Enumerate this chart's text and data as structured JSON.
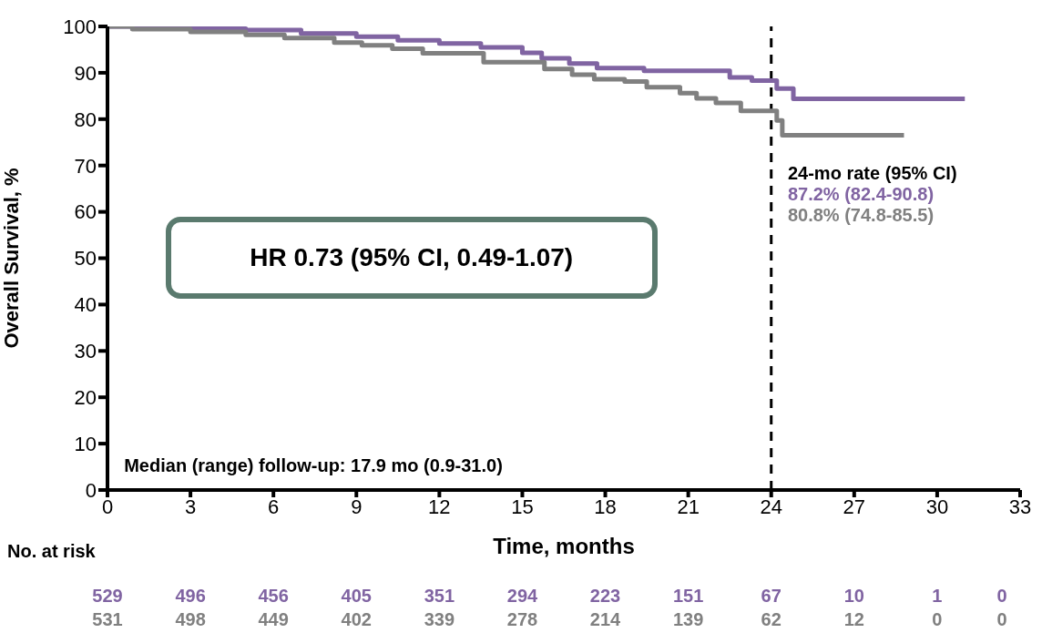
{
  "chart_data": {
    "type": "step",
    "xlabel": "Time, months",
    "ylabel": "Overall Survival, %",
    "xlim": [
      0,
      33
    ],
    "xticks": [
      0,
      3,
      6,
      9,
      12,
      15,
      18,
      21,
      24,
      27,
      30,
      33
    ],
    "ylim": [
      0,
      100
    ],
    "yticks": [
      0,
      10,
      20,
      30,
      40,
      50,
      60,
      70,
      80,
      90,
      100
    ],
    "line_style": "solid",
    "series": [
      {
        "color": "#8064a2",
        "x": [
          0,
          1,
          3,
          5,
          7,
          9,
          10.5,
          12,
          13.5,
          15,
          15.7,
          16.7,
          17.7,
          19.4,
          22.5,
          23.3,
          24.2,
          24.8,
          31.0
        ],
        "values": [
          100,
          99.8,
          99.5,
          99.2,
          98.5,
          97.8,
          97,
          96.3,
          95.5,
          94.3,
          93.1,
          92.0,
          91.0,
          90.4,
          89,
          88.3,
          86.6,
          84.4,
          84.4
        ]
      },
      {
        "color": "#808080",
        "x": [
          0,
          0.9,
          3,
          5,
          6.4,
          8.2,
          9.2,
          10.3,
          11.4,
          13.6,
          15.8,
          16.8,
          17.6,
          18.7,
          19.5,
          20.7,
          21.3,
          22,
          22.9,
          24.2,
          24.4,
          28.8
        ],
        "values": [
          100,
          99.4,
          98.8,
          98.2,
          97.5,
          96.5,
          95.9,
          95.2,
          94.2,
          92.3,
          90.8,
          89.6,
          88.6,
          88.1,
          86.9,
          85.6,
          84.5,
          83.5,
          81.8,
          79.7,
          76.5,
          76.5
        ]
      }
    ],
    "ref_lines": [
      {
        "axis": "x",
        "value": 24,
        "label": null,
        "color": "#000000",
        "line_style": "dashed"
      }
    ],
    "annotations": [
      "HR 0.73 (95% CI, 0.49-1.07)",
      "Median (range) follow-up: 17.9 mo (0.9-31.0)",
      "24-mo rate (95% CI)",
      "87.2% (82.4-90.8)",
      "80.8% (74.8-85.5)",
      "No. at risk",
      "529 496 456 405 351 294 223 151 67 10 1 0",
      "531 498 449 402 339 278 214 139 62 12 0 0"
    ]
  }
}
